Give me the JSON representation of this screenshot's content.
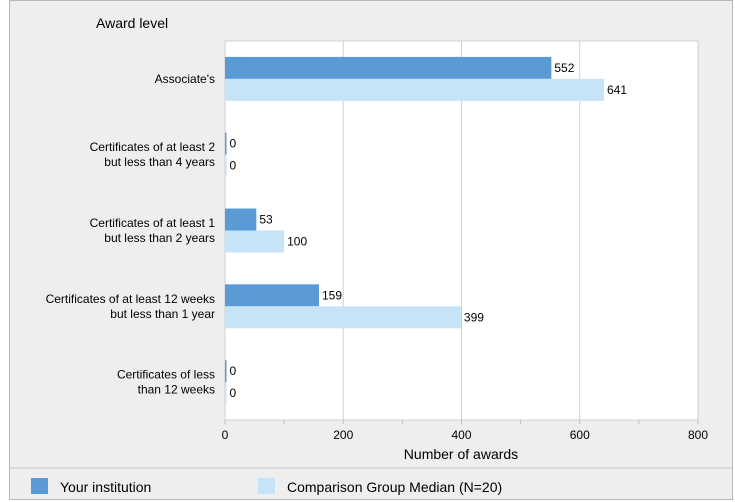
{
  "chart_data": {
    "type": "bar",
    "orientation": "horizontal",
    "title": "Award level",
    "xlabel": "Number of awards",
    "xlim": [
      0,
      800
    ],
    "xticks": [
      "0",
      "200",
      "400",
      "600",
      "800"
    ],
    "grid": true,
    "legend_position": "bottom",
    "categories": [
      [
        "Associate's"
      ],
      [
        "Certificates of at least 2",
        "but less than 4 years"
      ],
      [
        "Certificates of at least 1",
        "but  less than 2 years"
      ],
      [
        "Certificates of at least 12 weeks",
        "but less than 1 year"
      ],
      [
        "Certificates of less",
        "than 12 weeks"
      ]
    ],
    "series": [
      {
        "name": "Your institution",
        "color": "#5b9bd5",
        "values": [
          552,
          0,
          53,
          159,
          0
        ]
      },
      {
        "name": "Comparison Group Median (N=20)",
        "color": "#c6e3f7",
        "values": [
          641,
          0,
          100,
          399,
          0
        ]
      }
    ]
  }
}
